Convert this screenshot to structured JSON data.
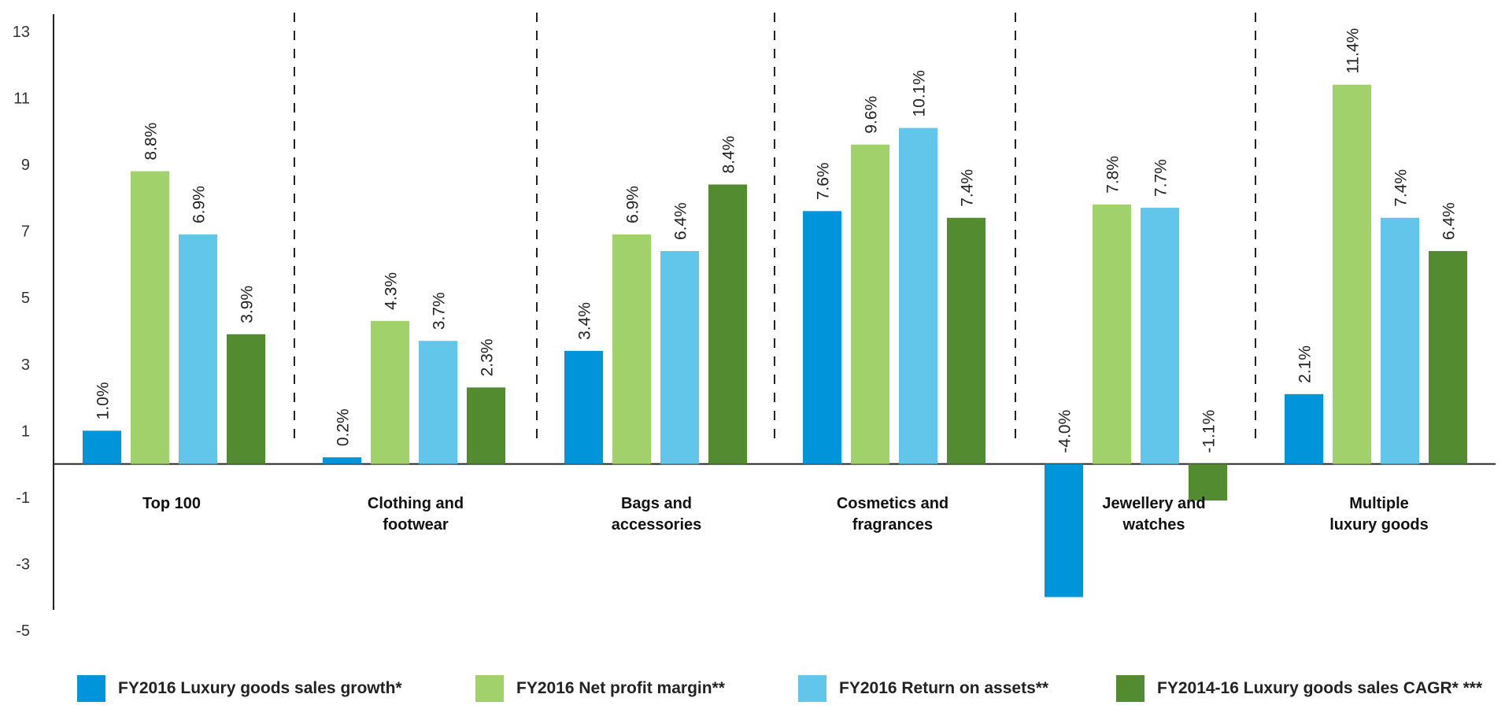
{
  "chart_data": {
    "type": "bar",
    "title": "",
    "xlabel": "",
    "ylabel": "",
    "ylim": [
      -5,
      13
    ],
    "y_ticks": [
      13,
      11,
      9,
      7,
      5,
      3,
      1,
      -1,
      -3,
      -5
    ],
    "grid": false,
    "legend_position": "bottom",
    "categories": [
      [
        "Top 100"
      ],
      [
        "Clothing and",
        "footwear"
      ],
      [
        "Bags and",
        "accessories"
      ],
      [
        "Cosmetics and",
        "fragrances"
      ],
      [
        "Jewellery and",
        "watches"
      ],
      [
        "Multiple",
        "luxury goods"
      ]
    ],
    "series": [
      {
        "name": "FY2016 Luxury goods sales growth*",
        "color": "#0095da",
        "values": [
          1.0,
          0.2,
          3.4,
          7.6,
          -4.0,
          2.1
        ],
        "labels": [
          "1.0%",
          "0.2%",
          "3.4%",
          "7.6%",
          "-4.0%",
          "2.1%"
        ]
      },
      {
        "name": "FY2016 Net profit margin**",
        "color": "#a0d16a",
        "values": [
          8.8,
          4.3,
          6.9,
          9.6,
          7.8,
          11.4
        ],
        "labels": [
          "8.8%",
          "4.3%",
          "6.9%",
          "9.6%",
          "7.8%",
          "11.4%"
        ]
      },
      {
        "name": "FY2016 Return on assets**",
        "color": "#62c5ea",
        "values": [
          6.9,
          3.7,
          6.4,
          10.1,
          7.7,
          7.4
        ],
        "labels": [
          "6.9%",
          "3.7%",
          "6.4%",
          "10.1%",
          "7.7%",
          "7.4%"
        ]
      },
      {
        "name": "FY2014-16 Luxury goods sales CAGR* ***",
        "color": "#538b31",
        "values": [
          3.9,
          2.3,
          8.4,
          7.4,
          -1.1,
          6.4
        ],
        "labels": [
          "3.9%",
          "2.3%",
          "8.4%",
          "7.4%",
          "-1.1%",
          "6.4%"
        ]
      }
    ]
  }
}
